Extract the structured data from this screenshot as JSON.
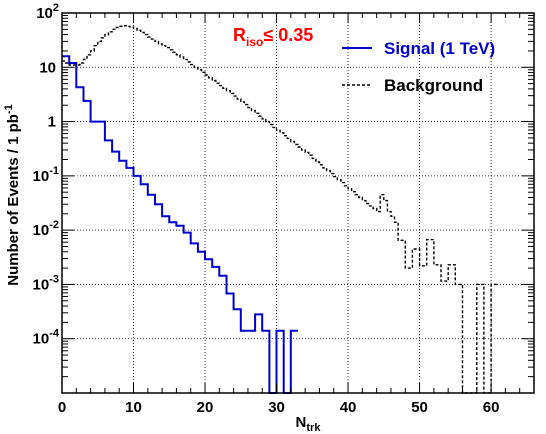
{
  "chart_data": {
    "type": "step",
    "xlabel": "N",
    "xlabel_sub": "trk",
    "ylabel": "Number of Events / 1 pb",
    "ylabel_sup": "-1",
    "xlim": [
      0,
      66
    ],
    "ylim": [
      1e-05,
      100
    ],
    "yscale": "log",
    "grid": true,
    "legend_position": "top-right",
    "x_ticks": [
      0,
      10,
      20,
      30,
      40,
      50,
      60
    ],
    "y_ticks": [
      {
        "value": 100,
        "mantissa": "10",
        "exp": "2"
      },
      {
        "value": 10,
        "mantissa": "10",
        "exp": ""
      },
      {
        "value": 1,
        "mantissa": "1",
        "exp": ""
      },
      {
        "value": 0.1,
        "mantissa": "10",
        "exp": "-1"
      },
      {
        "value": 0.01,
        "mantissa": "10",
        "exp": "-2"
      },
      {
        "value": 0.001,
        "mantissa": "10",
        "exp": "-3"
      },
      {
        "value": 0.0001,
        "mantissa": "10",
        "exp": "-4"
      }
    ],
    "annotation": {
      "text": "R",
      "sub": "iso",
      "rest": "≤ 0.35",
      "color": "#ff0000"
    },
    "series": [
      {
        "name": "Signal (1 TeV)",
        "color": "#0000cc",
        "style": "solid",
        "bin_width": 1,
        "x_start": 0,
        "values": [
          16,
          12,
          4.3,
          2.4,
          1.0,
          1.0,
          0.45,
          0.28,
          0.19,
          0.14,
          0.1,
          0.07,
          0.045,
          0.03,
          0.018,
          0.014,
          0.012,
          0.009,
          0.0057,
          0.004,
          0.0029,
          0.0021,
          0.00145,
          0.00068,
          0.00035,
          0.00014,
          0.00014,
          0.00028,
          0.00014,
          1e-05,
          0.00014,
          1e-05,
          0.00014
        ]
      },
      {
        "name": "Background",
        "color": "#000000",
        "style": "dashed",
        "bin_width": 0.5,
        "x_start": 0,
        "values": [
          13,
          12,
          11,
          11,
          11,
          12,
          14,
          17,
          20,
          25,
          30,
          35,
          40,
          45,
          50,
          54,
          57,
          58,
          57,
          55,
          52,
          48,
          44,
          40,
          36,
          33,
          30,
          27,
          25,
          23,
          21,
          19,
          17,
          15.5,
          14,
          12.5,
          11.2,
          10,
          9,
          8.1,
          7.2,
          6.4,
          5.7,
          5.1,
          4.6,
          4.1,
          3.7,
          3.3,
          2.95,
          2.6,
          2.3,
          2.05,
          1.82,
          1.6,
          1.42,
          1.26,
          1.12,
          1.0,
          0.88,
          0.78,
          0.69,
          0.62,
          0.55,
          0.49,
          0.43,
          0.38,
          0.34,
          0.3,
          0.27,
          0.24,
          0.21,
          0.18,
          0.16,
          0.14,
          0.125,
          0.11,
          0.097,
          0.085,
          0.075,
          0.066,
          0.058,
          0.051,
          0.045,
          0.04,
          0.035,
          0.031,
          0.028,
          0.025,
          0.022,
          0.045,
          0.035,
          0.022,
          0.018,
          0.014,
          0.0065,
          0.0065,
          0.002,
          0.002,
          0.0045,
          0.0045,
          0.0022,
          0.0022,
          0.0067,
          0.0067,
          0.0023,
          0.0023,
          0.00115,
          0.00115,
          0.0023,
          0.0023,
          0.001,
          0.001,
          1e-05,
          1e-05,
          1e-05,
          1e-05,
          0.001,
          0.001,
          1e-05,
          1e-05,
          0.001,
          0.001
        ]
      }
    ]
  }
}
